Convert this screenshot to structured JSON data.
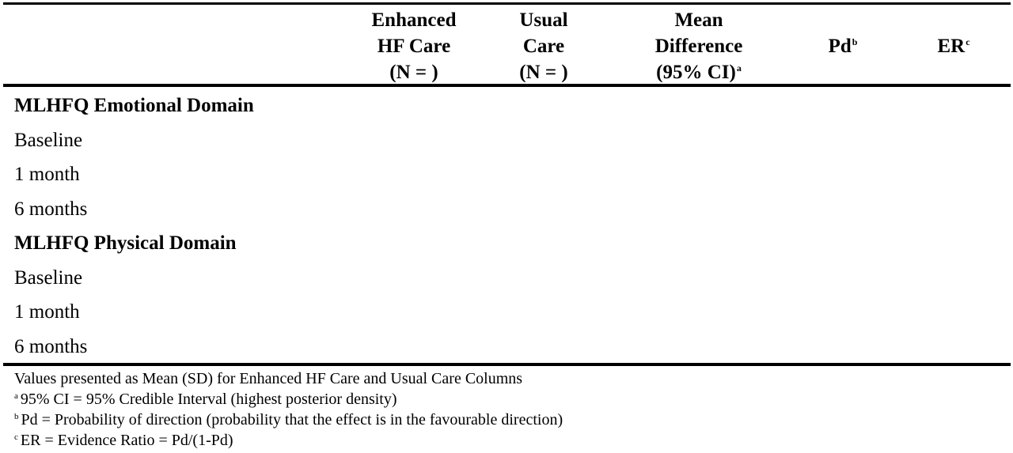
{
  "table": {
    "headers": {
      "enhanced": [
        "Enhanced",
        "HF Care",
        "(N = )"
      ],
      "usual": [
        "Usual",
        "Care",
        "(N = )"
      ],
      "mean_diff": [
        "Mean",
        "Difference",
        "(95% CI)"
      ],
      "mean_diff_sup": "a",
      "pd": "Pd",
      "pd_sup": "b",
      "er": "ER",
      "er_sup": "c"
    },
    "rows": [
      {
        "label": "MLHFQ Emotional Domain"
      },
      {
        "label": "Baseline"
      },
      {
        "label": "1 month"
      },
      {
        "label": "6 months"
      },
      {
        "label": "MLHFQ Physical Domain"
      },
      {
        "label": "Baseline"
      },
      {
        "label": "1 month"
      },
      {
        "label": "6 months"
      }
    ]
  },
  "footnotes": {
    "note": "Values presented as Mean (SD) for Enhanced HF Care and Usual Care Columns",
    "a_mark": "a",
    "a": "95% CI = 95% Credible Interval (highest posterior density)",
    "b_mark": "b",
    "b": "Pd = Probability of direction (probability that the effect is in the favourable direction)",
    "c_mark": "c",
    "c": "ER = Evidence Ratio = Pd/(1-Pd)"
  }
}
